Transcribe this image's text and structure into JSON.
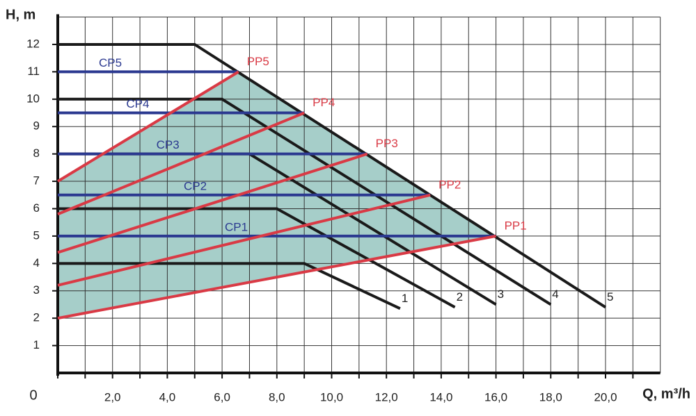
{
  "chart_data": {
    "type": "line",
    "ylabel": "H, m",
    "xlabel": "Q, m³/h",
    "xlim": [
      0,
      22
    ],
    "ylim": [
      0,
      13
    ],
    "xticks": [
      0,
      {
        "value": 2,
        "label": "2,0"
      },
      {
        "value": 4,
        "label": "4,0"
      },
      {
        "value": 6,
        "label": "6,0"
      },
      {
        "value": 8,
        "label": "8,0"
      },
      {
        "value": 10,
        "label": "10,0"
      },
      {
        "value": 12,
        "label": "12,0"
      },
      {
        "value": 14,
        "label": "14,0"
      },
      {
        "value": 16,
        "label": "16,0"
      },
      {
        "value": 18,
        "label": "18,0"
      },
      {
        "value": 20,
        "label": "20,0"
      }
    ],
    "xminorticks": [
      1,
      3,
      5,
      7,
      9,
      11,
      13,
      15,
      17,
      19,
      21
    ],
    "yticks": [
      1,
      2,
      3,
      4,
      5,
      6,
      7,
      8,
      9,
      10,
      11,
      12
    ],
    "grid": true,
    "fill_color": "#a6cec9",
    "series": [
      {
        "name": "1",
        "color": "#1a1a1a",
        "x": [
          0,
          9,
          12.5
        ],
        "values": [
          4,
          4,
          2.35
        ]
      },
      {
        "name": "2",
        "color": "#1a1a1a",
        "x": [
          0,
          8,
          14.5
        ],
        "values": [
          6,
          6,
          2.4
        ]
      },
      {
        "name": "3",
        "color": "#1a1a1a",
        "x": [
          0,
          7,
          16
        ],
        "values": [
          8,
          8,
          2.5
        ]
      },
      {
        "name": "4",
        "color": "#1a1a1a",
        "x": [
          0,
          6,
          18
        ],
        "values": [
          10,
          10,
          2.5
        ]
      },
      {
        "name": "5",
        "color": "#1a1a1a",
        "x": [
          0,
          5,
          20
        ],
        "values": [
          12,
          12,
          2.4
        ]
      },
      {
        "name": "CP1",
        "color": "#2b3990",
        "x": [
          0,
          16
        ],
        "values": [
          5,
          5
        ]
      },
      {
        "name": "CP2",
        "color": "#2b3990",
        "x": [
          0,
          13.6
        ],
        "values": [
          6.5,
          6.5
        ]
      },
      {
        "name": "CP3",
        "color": "#2b3990",
        "x": [
          0,
          11.3
        ],
        "values": [
          8,
          8
        ]
      },
      {
        "name": "CP4",
        "color": "#2b3990",
        "x": [
          0,
          9
        ],
        "values": [
          9.5,
          9.5
        ]
      },
      {
        "name": "CP5",
        "color": "#2b3990",
        "x": [
          0,
          6.6
        ],
        "values": [
          11,
          11
        ]
      },
      {
        "name": "PP1",
        "color": "#d93a45",
        "x": [
          0,
          16
        ],
        "values": [
          2,
          5
        ]
      },
      {
        "name": "PP2",
        "color": "#d93a45",
        "x": [
          0,
          13.6
        ],
        "values": [
          3.2,
          6.5
        ]
      },
      {
        "name": "PP3",
        "color": "#d93a45",
        "x": [
          0,
          11.3
        ],
        "values": [
          4.4,
          8
        ]
      },
      {
        "name": "PP4",
        "color": "#d93a45",
        "x": [
          0,
          9
        ],
        "values": [
          5.8,
          9.5
        ]
      },
      {
        "name": "PP5",
        "color": "#d93a45",
        "x": [
          0,
          6.6
        ],
        "values": [
          7,
          11
        ]
      }
    ]
  }
}
